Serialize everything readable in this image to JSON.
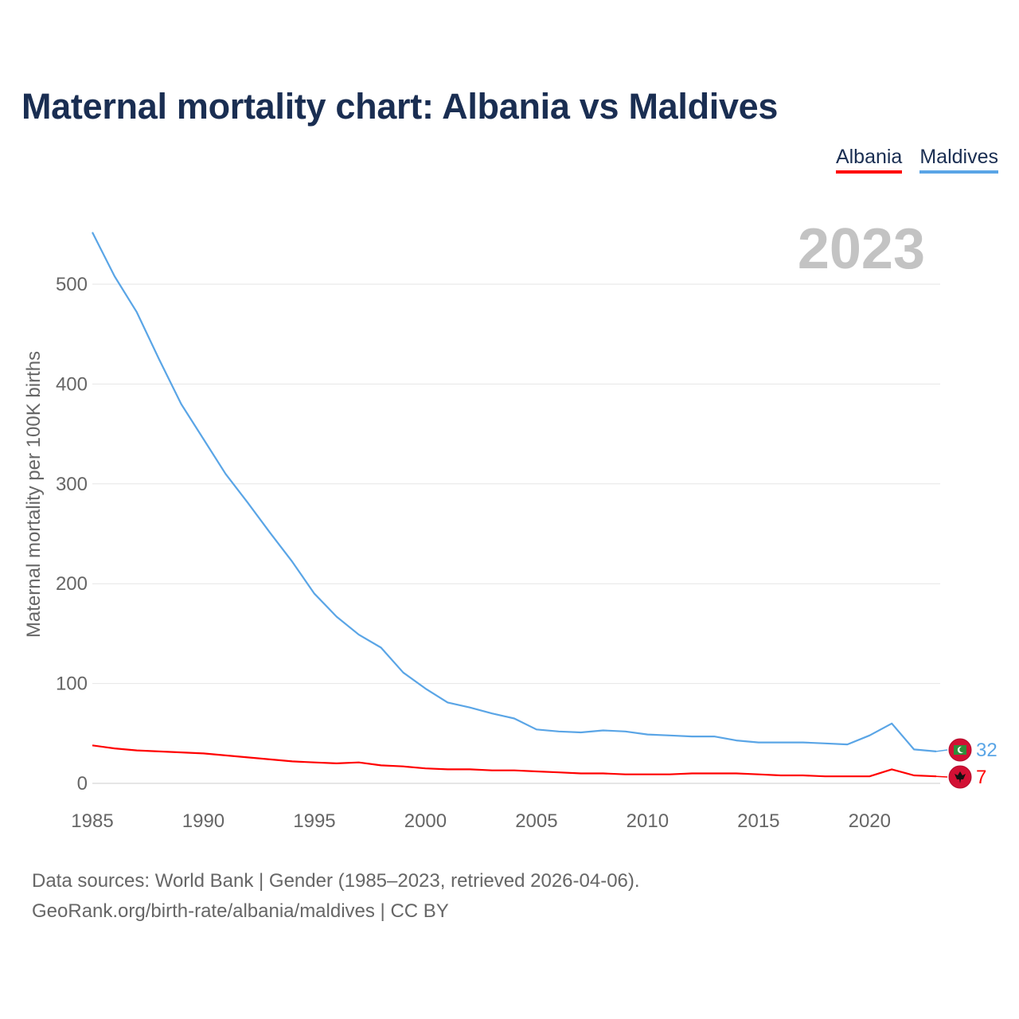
{
  "chart_data": {
    "type": "line",
    "title": "Maternal mortality chart: Albania vs Maldives",
    "ylabel": "Maternal mortality per 100K births",
    "xlabel": "",
    "xlim": [
      1985,
      2023
    ],
    "ylim": [
      0,
      550
    ],
    "x_ticks": [
      "1985",
      "1990",
      "1995",
      "2000",
      "2005",
      "2010",
      "2015",
      "2020"
    ],
    "y_ticks": [
      "0",
      "100",
      "200",
      "300",
      "400",
      "500"
    ],
    "year_label": "2023",
    "legend_position": "top-right",
    "x": [
      1985,
      1986,
      1987,
      1988,
      1989,
      1990,
      1991,
      1992,
      1993,
      1994,
      1995,
      1996,
      1997,
      1998,
      1999,
      2000,
      2001,
      2002,
      2003,
      2004,
      2005,
      2006,
      2007,
      2008,
      2009,
      2010,
      2011,
      2012,
      2013,
      2014,
      2015,
      2016,
      2017,
      2018,
      2019,
      2020,
      2021,
      2022,
      2023
    ],
    "series": [
      {
        "name": "Albania",
        "color": "#ff0000",
        "end_label": "7",
        "values": [
          38,
          35,
          33,
          32,
          31,
          30,
          28,
          26,
          24,
          22,
          21,
          20,
          21,
          18,
          17,
          15,
          14,
          14,
          13,
          13,
          12,
          11,
          10,
          10,
          9,
          9,
          9,
          10,
          10,
          10,
          9,
          8,
          8,
          7,
          7,
          7,
          14,
          8,
          7
        ]
      },
      {
        "name": "Maldives",
        "color": "#5aa5e6",
        "end_label": "32",
        "values": [
          552,
          508,
          472,
          425,
          380,
          345,
          310,
          281,
          251,
          222,
          190,
          167,
          149,
          136,
          111,
          95,
          81,
          76,
          70,
          65,
          54,
          52,
          51,
          53,
          52,
          49,
          48,
          47,
          47,
          43,
          41,
          41,
          41,
          40,
          39,
          48,
          60,
          34,
          32
        ]
      }
    ]
  },
  "legend": {
    "albania": "Albania",
    "maldives": "Maldives"
  },
  "footer": {
    "line1": "Data sources: World Bank | Gender (1985–2023, retrieved 2026-04-06).",
    "line2": "GeoRank.org/birth-rate/albania/maldives | CC BY"
  },
  "icons": {
    "albania_flag": "albania-flag-icon",
    "maldives_flag": "maldives-flag-icon"
  }
}
